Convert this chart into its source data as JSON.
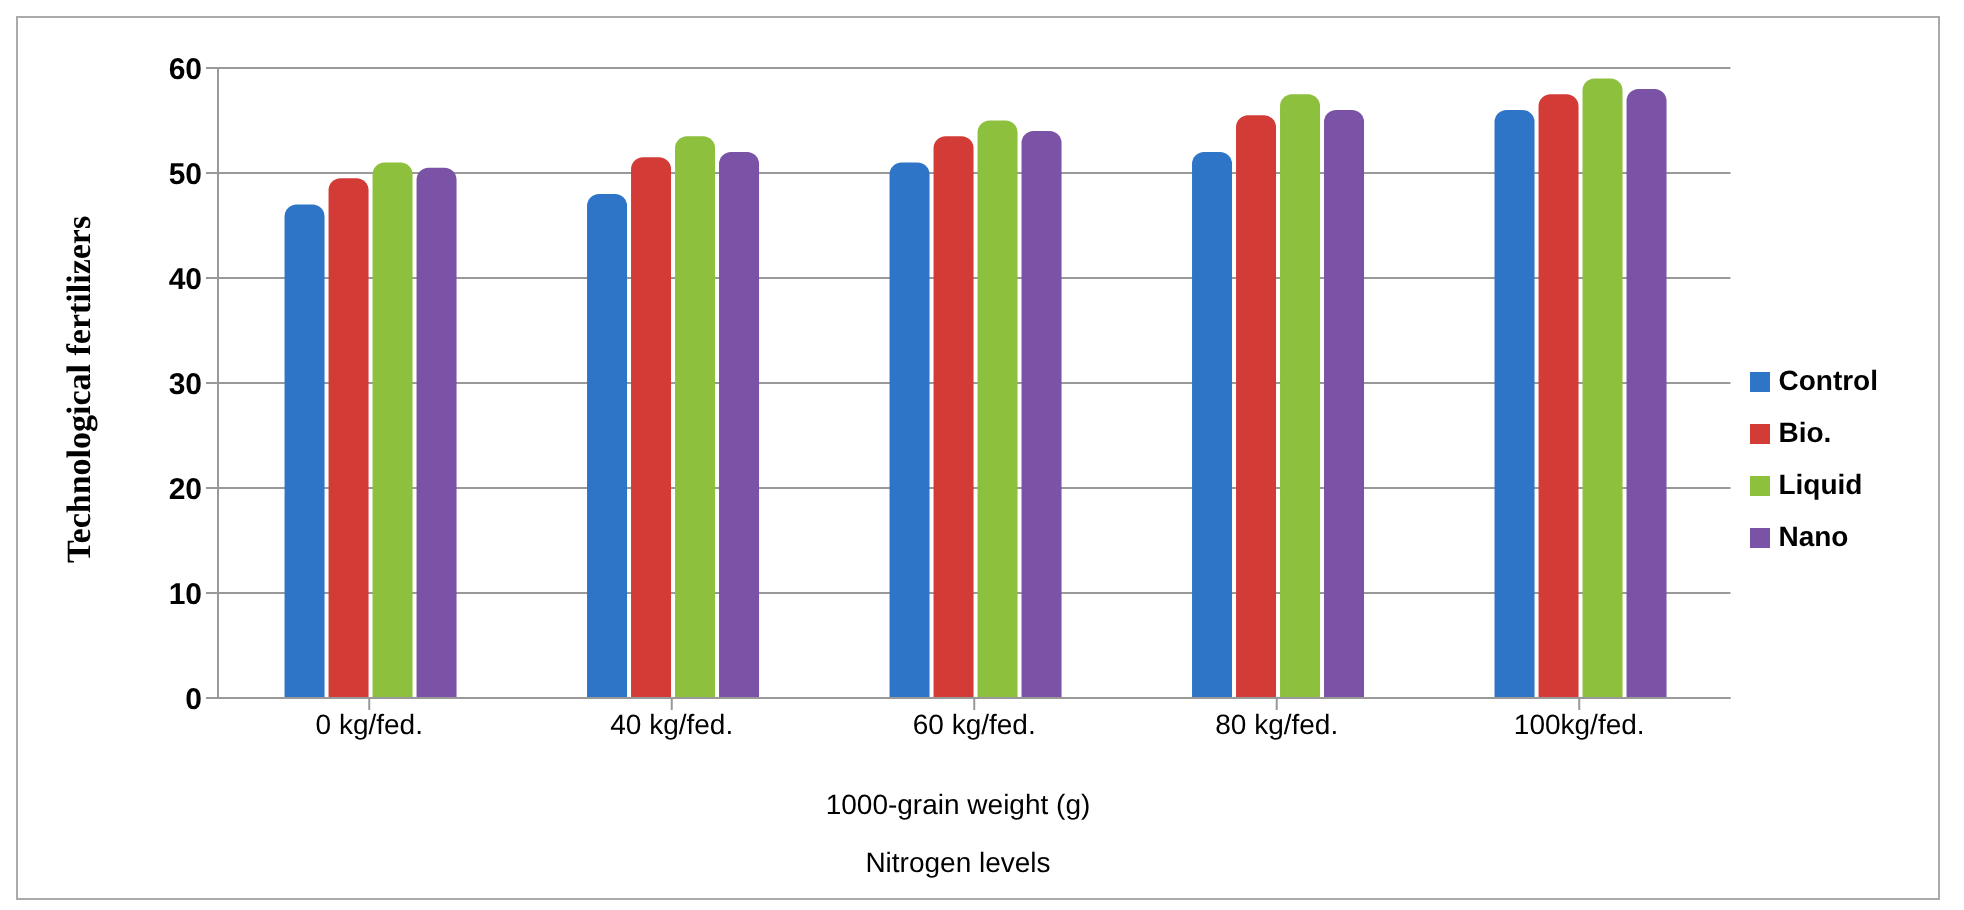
{
  "chart_data": {
    "type": "bar",
    "ylabel": "Technological fertilizers",
    "xlabel": "Nitrogen levels",
    "annotations": [
      "1000-grain weight (g)"
    ],
    "categories": [
      "0 kg/fed.",
      "40 kg/fed.",
      "60 kg/fed.",
      "80 kg/fed.",
      "100kg/fed."
    ],
    "series": [
      {
        "name": "Control",
        "color": "#2e75c8",
        "values": [
          47,
          48,
          51,
          52,
          56
        ]
      },
      {
        "name": "Bio.",
        "color": "#d33b37",
        "values": [
          49.5,
          51.5,
          53.5,
          55.5,
          57.5
        ]
      },
      {
        "name": "Liquid",
        "color": "#8dc03d",
        "values": [
          51,
          53.5,
          55,
          57.5,
          59
        ]
      },
      {
        "name": "Nano",
        "color": "#7a52a6",
        "values": [
          50.5,
          52,
          54,
          56,
          58
        ]
      }
    ],
    "ylim": [
      0,
      60
    ],
    "yticks": [
      0,
      10,
      20,
      30,
      40,
      50,
      60
    ],
    "grid": "y",
    "legend": "right"
  }
}
